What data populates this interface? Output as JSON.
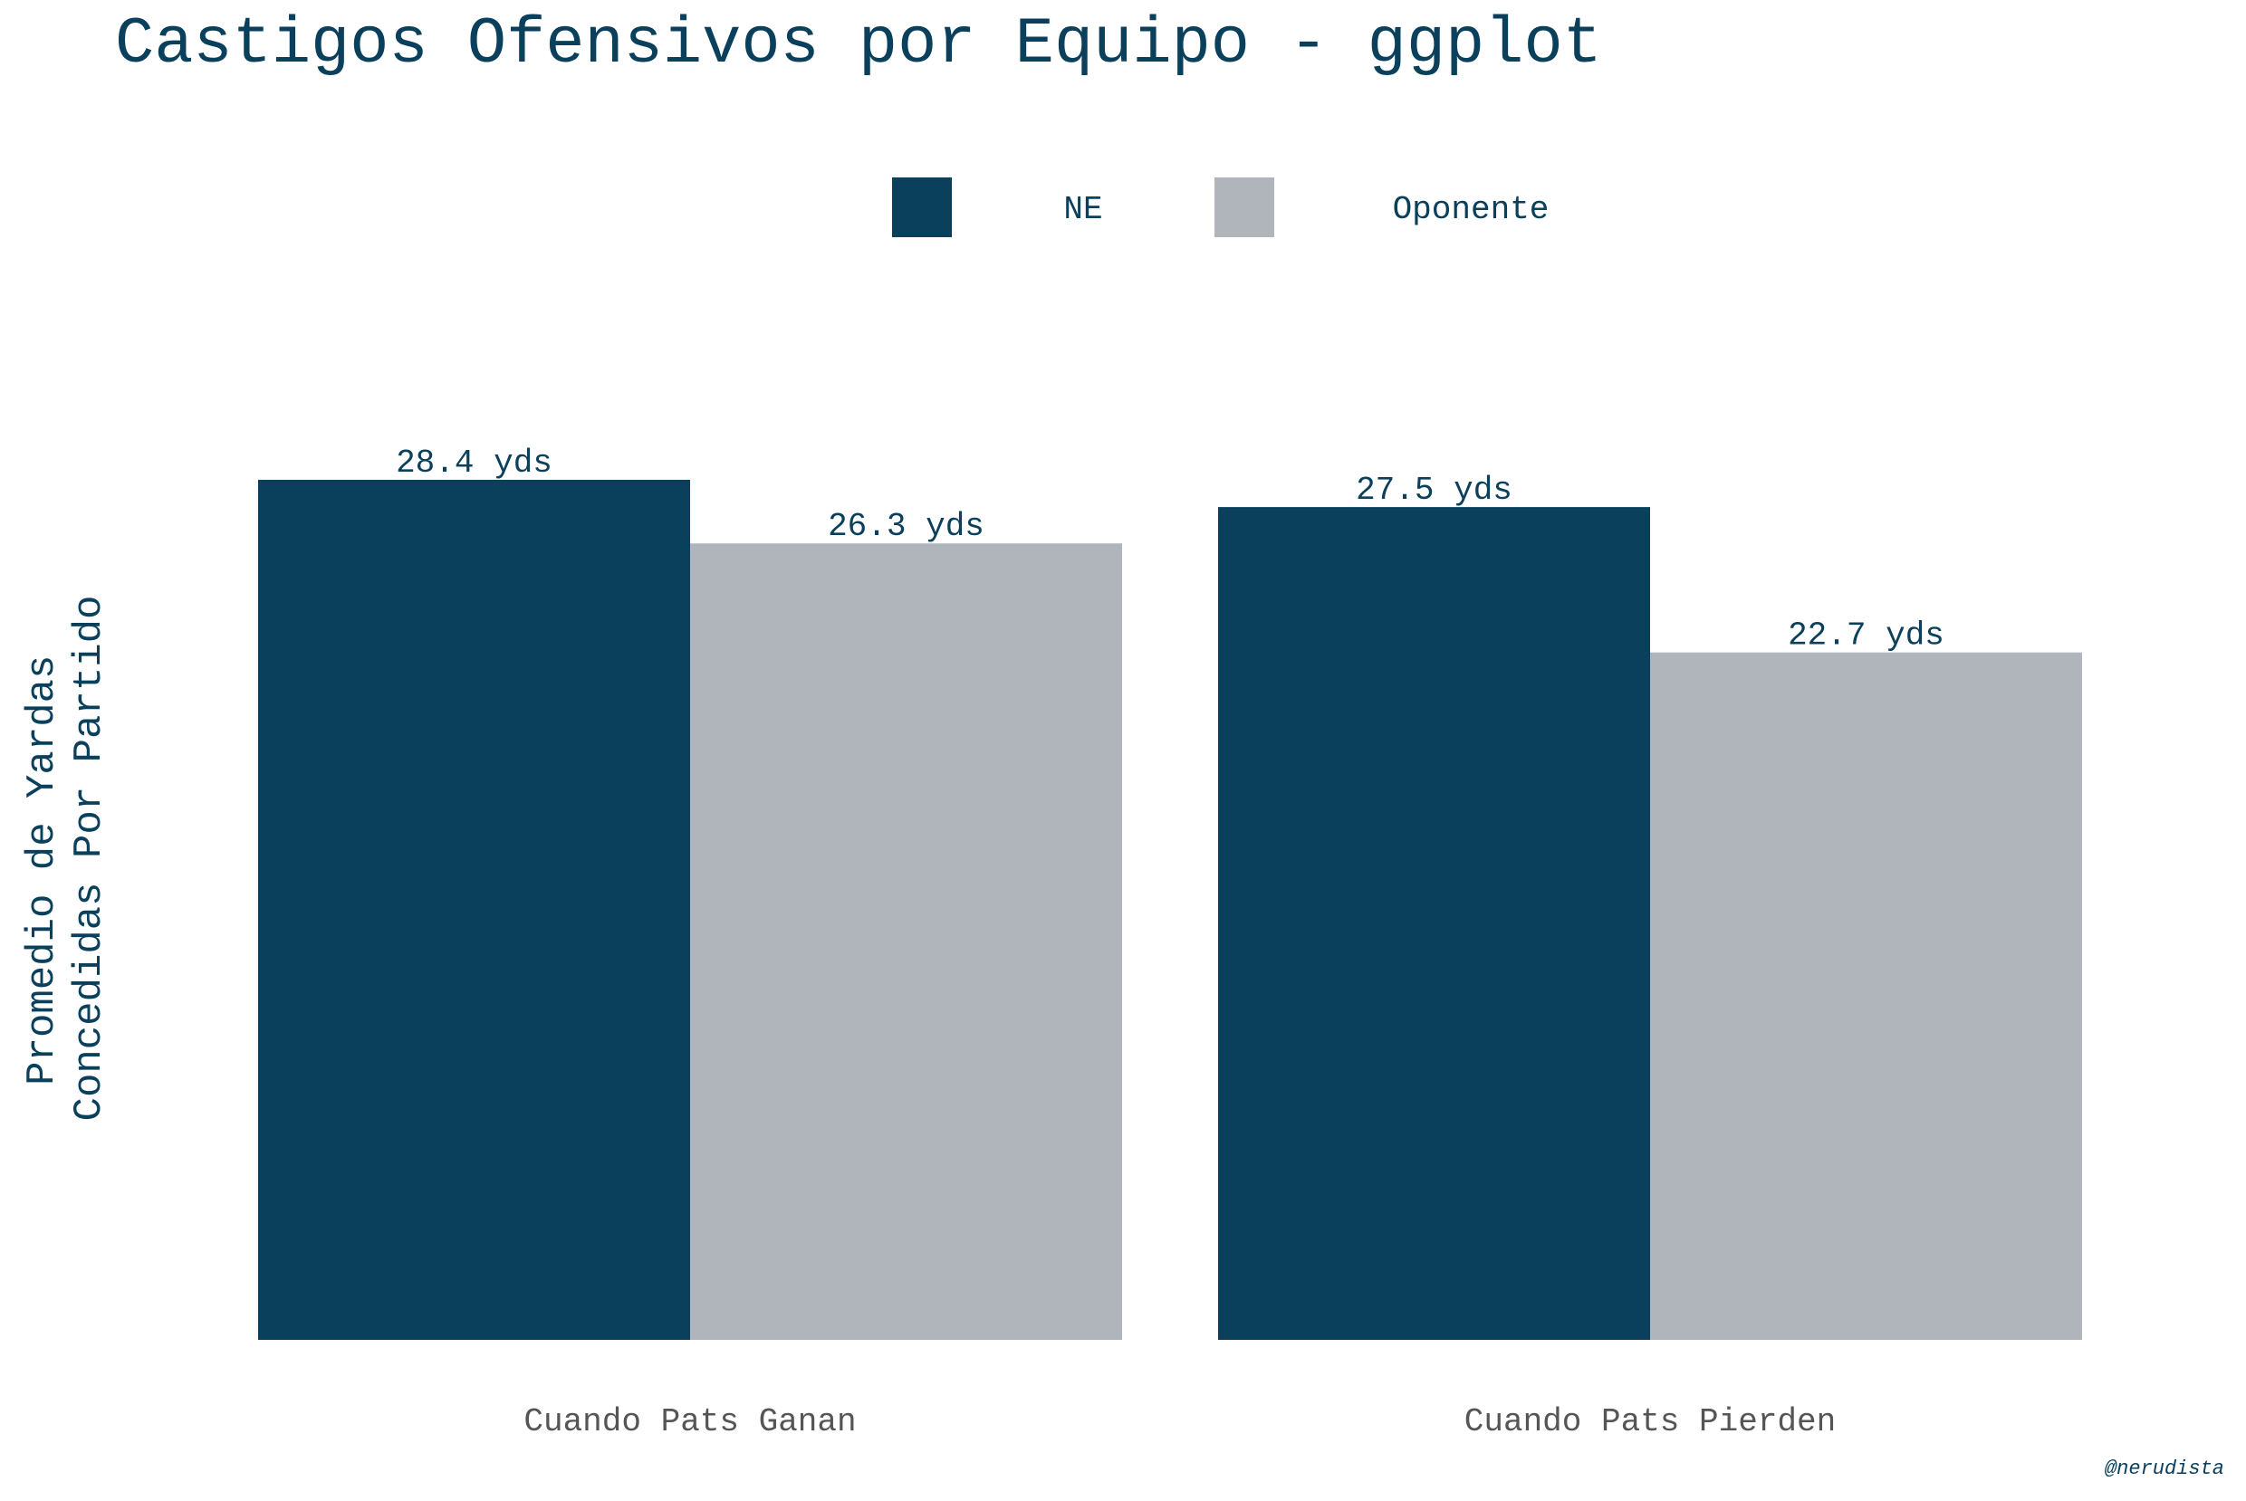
{
  "chart_data": {
    "type": "bar",
    "title": "Castigos Ofensivos por Equipo - ggplot",
    "ylabel_lines": [
      "Promedio de Yardas",
      "Concedidas Por Partido"
    ],
    "xlabel": "",
    "categories": [
      "Cuando Pats Ganan",
      "Cuando Pats Pierden"
    ],
    "series": [
      {
        "name": "NE",
        "color": "#0a405c",
        "values": [
          28.4,
          27.5
        ]
      },
      {
        "name": "Oponente",
        "color": "#afb5ba",
        "values": [
          26.3,
          22.7
        ]
      }
    ],
    "value_label_suffix": "yds",
    "ylim": [
      0,
      28.4
    ],
    "grid": false,
    "legend_position": "top",
    "caption": "@nerudista"
  },
  "colors": {
    "title": "#0a405c",
    "axis_text": "#555555"
  }
}
